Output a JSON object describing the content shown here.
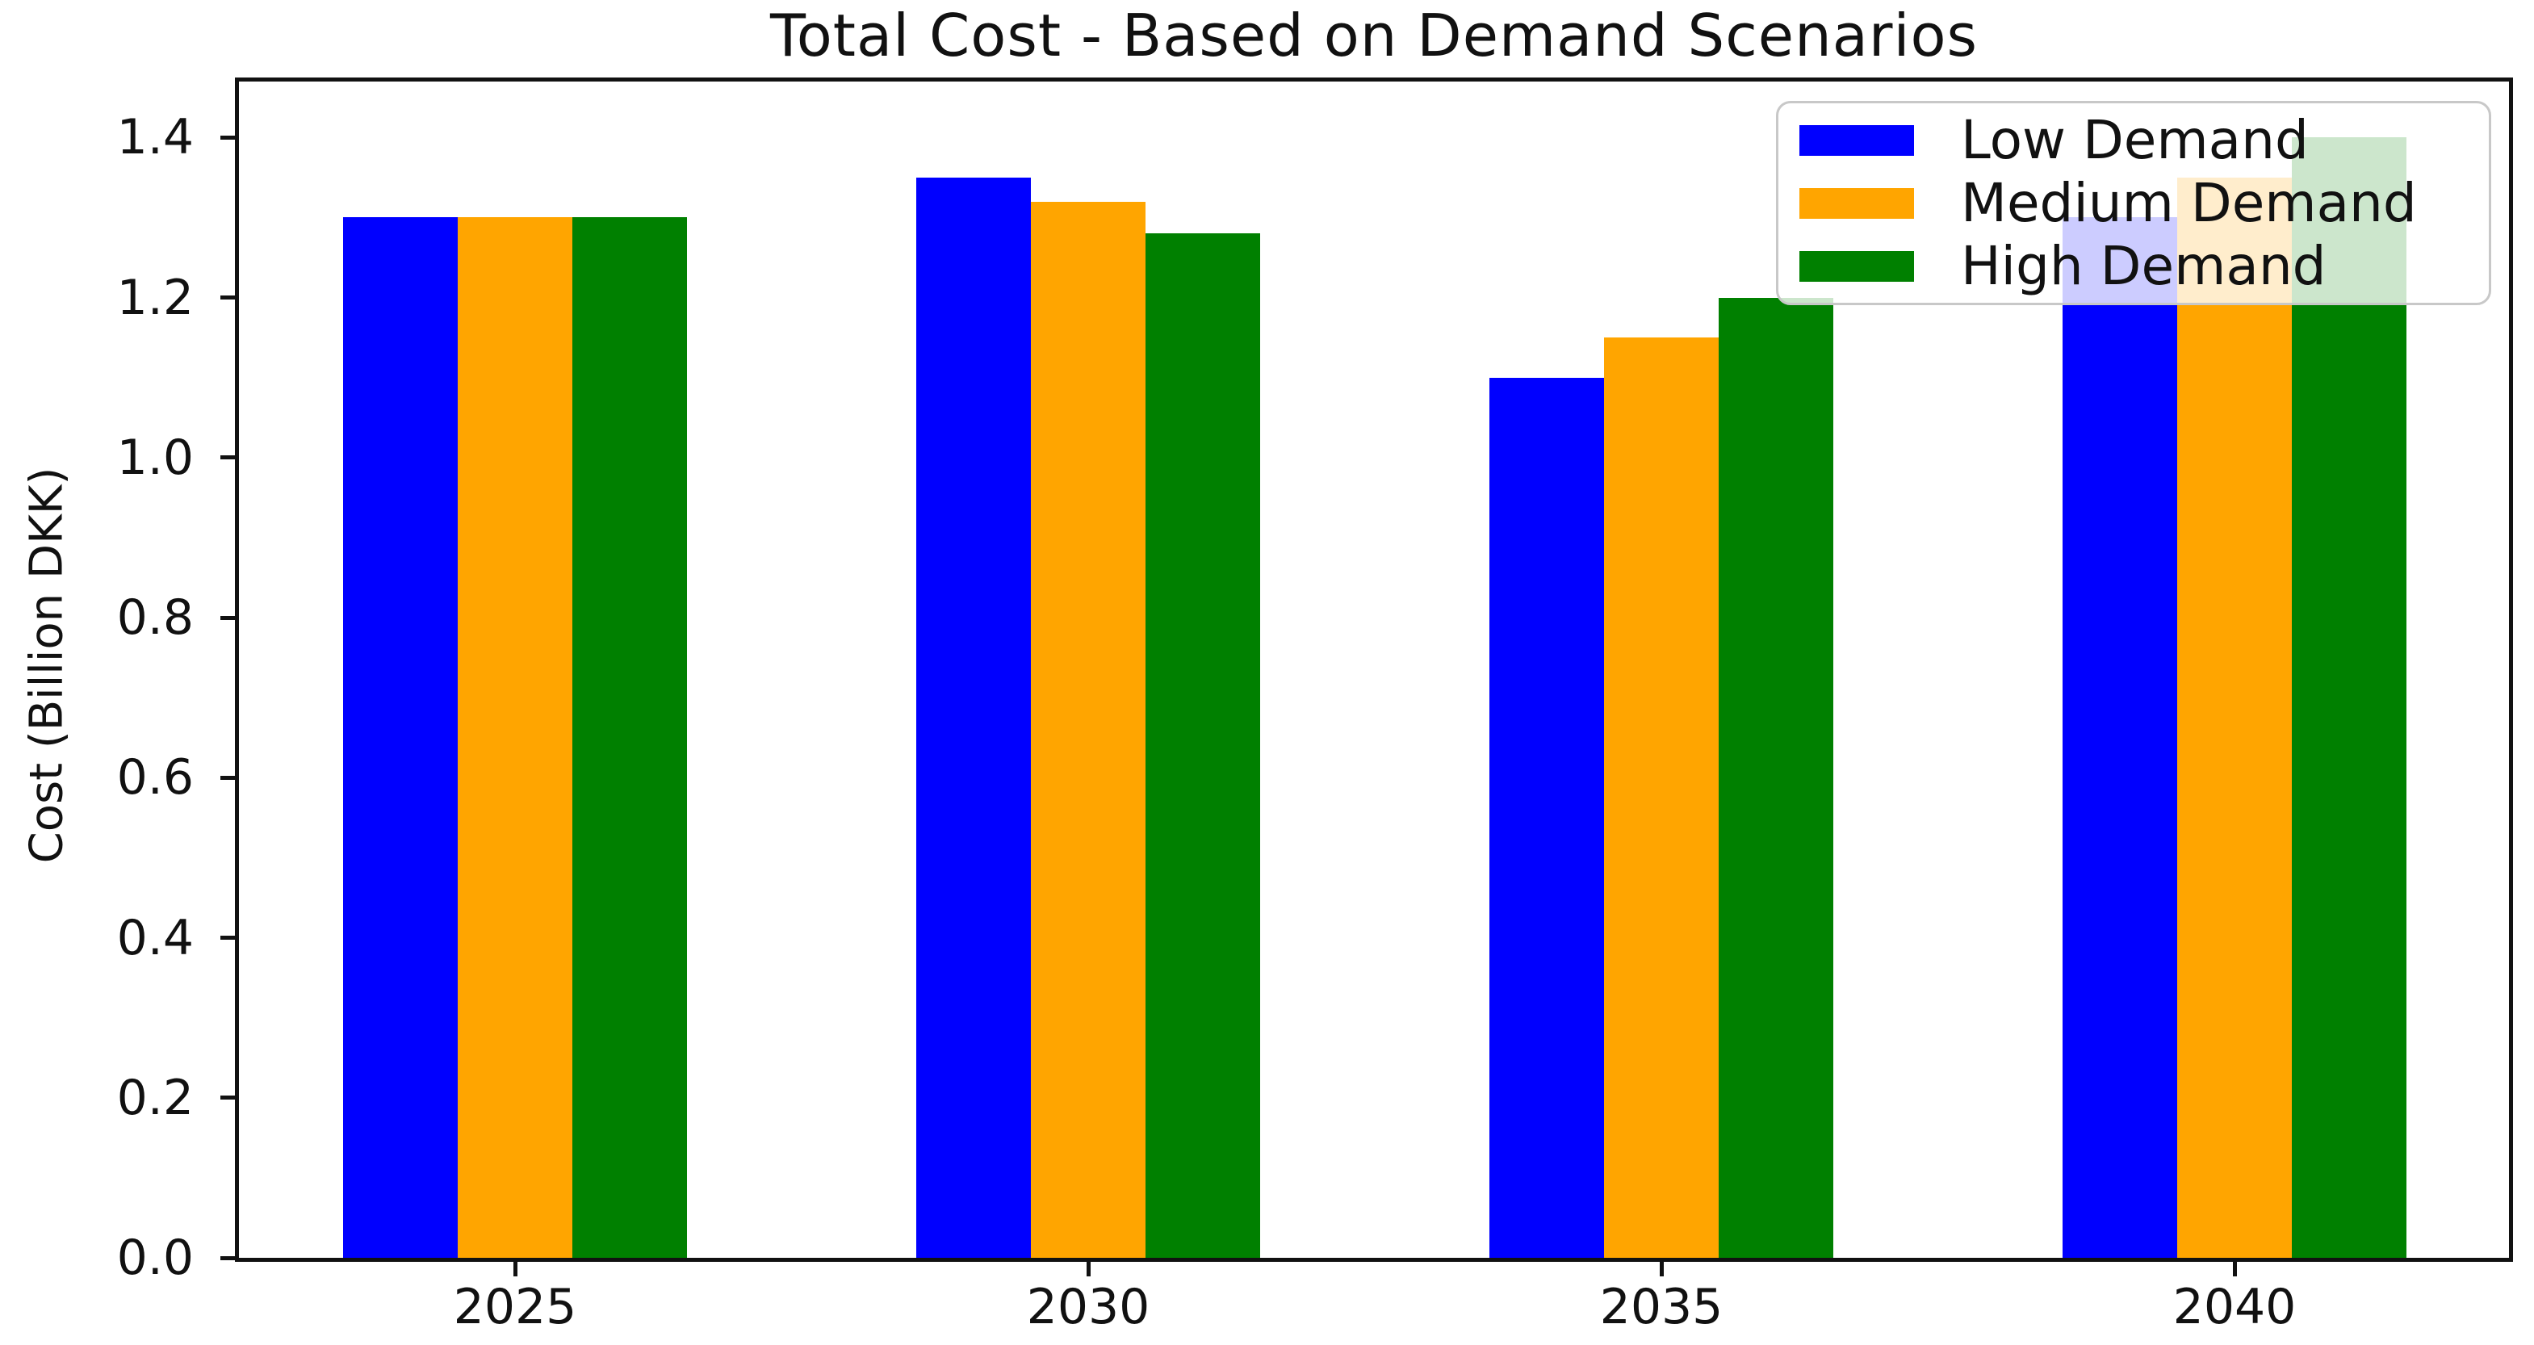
{
  "figure_title": "Total Cost - Based on Demand Scenarios",
  "chart_data": {
    "type": "bar",
    "title": "Total Cost - Based on Demand Scenarios",
    "xlabel": "",
    "ylabel": "Cost (Billion DKK)",
    "categories": [
      "2025",
      "2030",
      "2035",
      "2040"
    ],
    "series": [
      {
        "name": "Low Demand",
        "color": "#0000ff",
        "values": [
          1.3,
          1.35,
          1.1,
          1.3
        ]
      },
      {
        "name": "Medium Demand",
        "color": "#ffa500",
        "values": [
          1.3,
          1.32,
          1.15,
          1.35
        ]
      },
      {
        "name": "High Demand",
        "color": "#008000",
        "values": [
          1.3,
          1.28,
          1.2,
          1.4
        ]
      }
    ],
    "yticks": [
      0.0,
      0.2,
      0.4,
      0.6,
      0.8,
      1.0,
      1.2,
      1.4
    ],
    "ylim": [
      0,
      1.47
    ],
    "legend_position": "upper right",
    "grid": false
  },
  "colors": {
    "spine": "#111111",
    "text": "#111111",
    "legend_border": "#c8c8c8",
    "legend_background": "rgba(255,255,255,0.8)"
  }
}
